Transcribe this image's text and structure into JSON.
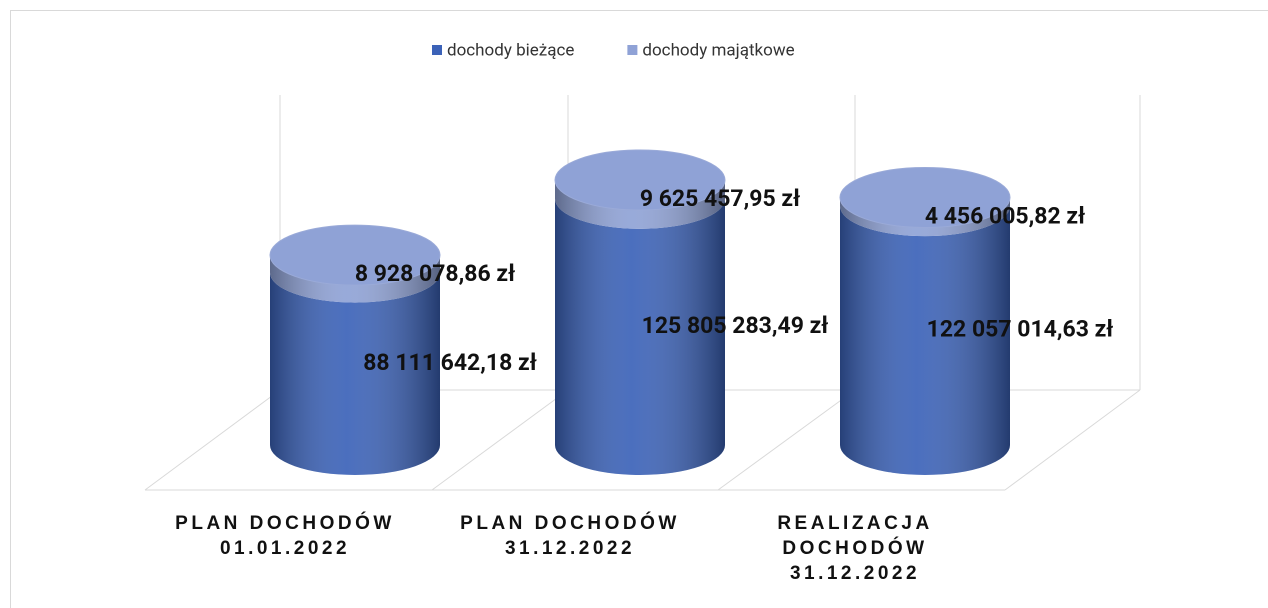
{
  "chart_data": {
    "type": "cylinder-stacked",
    "categories": [
      "PLAN DOCHODÓW\n01.01.2022",
      "PLAN DOCHODÓW\n31.12.2022",
      "REALIZACJA\nDOCHODÓW\n31.12.2022"
    ],
    "series": [
      {
        "name": "dochody bieżące",
        "color": "#3b62b8",
        "values": [
          88111642.18,
          125805283.49,
          122057014.63
        ],
        "value_labels": [
          "88 111 642,18 zł",
          "125 805 283,49 zł",
          "122 057 014,63 zł"
        ]
      },
      {
        "name": "dochody majątkowe",
        "color": "#8fa2d6",
        "values": [
          8928078.86,
          9625457.95,
          4456005.82
        ],
        "value_labels": [
          "8 928 078,86 zł",
          "9 625 457,95 zł",
          "4 456 005,82 zł"
        ]
      }
    ],
    "legend": "top"
  }
}
